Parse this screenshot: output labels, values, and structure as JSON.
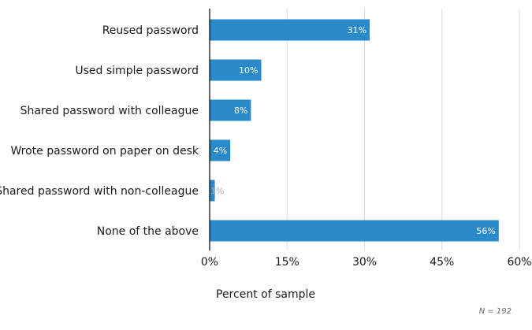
{
  "chart_data": {
    "type": "bar",
    "orientation": "horizontal",
    "categories": [
      "Reused password",
      "Used simple password",
      "Shared password with colleague",
      "Wrote password on paper on desk",
      "Shared password with non-colleague",
      "None of the above"
    ],
    "values": [
      31,
      10,
      8,
      4,
      1,
      56
    ],
    "value_labels": [
      "31%",
      "10%",
      "8%",
      "4%",
      "1%",
      "56%"
    ],
    "xlabel": "Percent of sample",
    "ylabel": "",
    "xlim": [
      0,
      60
    ],
    "ticks": [
      0,
      15,
      30,
      45,
      60
    ],
    "tick_labels": [
      "0%",
      "15%",
      "30%",
      "45%",
      "60%"
    ],
    "grid": "vertical",
    "note": "N = 192",
    "colors": {
      "bar": "#2a89c8",
      "grid": "#dcdcdc",
      "axis": "#000000",
      "label_inside": "#ffffff",
      "label_outside": "#aaaaaa"
    }
  }
}
